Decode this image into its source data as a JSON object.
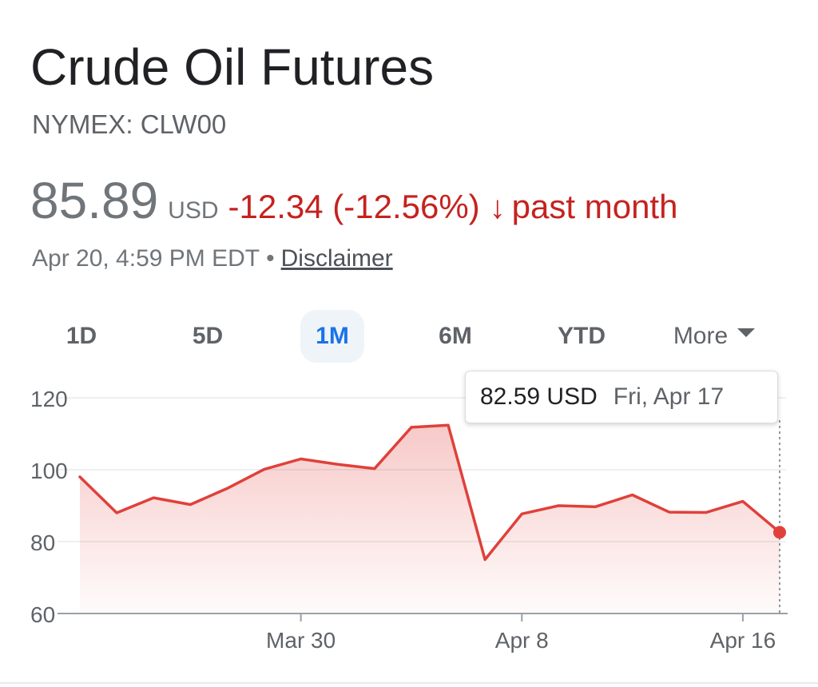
{
  "header": {
    "title": "Crude Oil Futures",
    "ticker": "NYMEX: CLW00"
  },
  "quote": {
    "price": "85.89",
    "currency": "USD",
    "change": "-12.34 (-12.56%)",
    "arrow": "↓",
    "period": "past month",
    "timestamp": "Apr 20, 4:59 PM EDT",
    "separator": "•",
    "disclaimer": "Disclaimer"
  },
  "tabs": [
    {
      "id": "1d",
      "label": "1D",
      "active": false
    },
    {
      "id": "5d",
      "label": "5D",
      "active": false
    },
    {
      "id": "1m",
      "label": "1M",
      "active": true
    },
    {
      "id": "6m",
      "label": "6M",
      "active": false
    },
    {
      "id": "ytd",
      "label": "YTD",
      "active": false
    },
    {
      "id": "more",
      "label": "More",
      "active": false
    }
  ],
  "tooltip": {
    "value": "82.59 USD",
    "date": "Fri, Apr 17"
  },
  "colors": {
    "line": "#e0403a",
    "change_red": "#c5221f",
    "active_tab": "#1a73e8",
    "grid": "#e8eaed",
    "axis": "#9aa0a6"
  },
  "chart_data": {
    "type": "area",
    "ylim": [
      60,
      120
    ],
    "y_ticks": [
      120,
      100,
      80,
      60
    ],
    "x_ticks": [
      {
        "label": "Mar 30",
        "index": 6
      },
      {
        "label": "Apr 8",
        "index": 12
      },
      {
        "label": "Apr 16",
        "index": 18
      }
    ],
    "values": [
      98.0,
      88.0,
      92.2,
      90.3,
      94.8,
      100.1,
      103.0,
      101.5,
      100.3,
      111.8,
      112.4,
      75.0,
      87.7,
      90.0,
      89.7,
      93.0,
      88.2,
      88.1,
      91.2,
      82.59
    ],
    "highlight_index": 19,
    "xlabel": "",
    "ylabel": ""
  }
}
